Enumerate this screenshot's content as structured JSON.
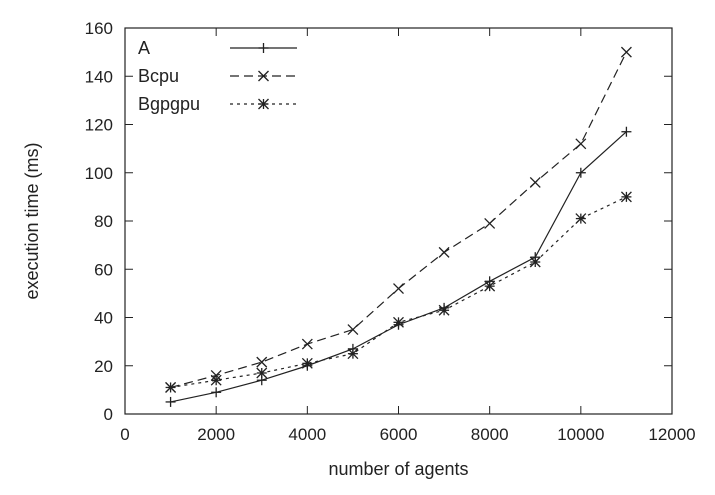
{
  "chart_data": {
    "type": "line",
    "title": "",
    "xlabel": "number of agents",
    "ylabel": "execution time (ms)",
    "xlim": [
      0,
      12000
    ],
    "ylim": [
      0,
      160
    ],
    "x_ticks": [
      0,
      2000,
      4000,
      6000,
      8000,
      10000,
      12000
    ],
    "y_ticks": [
      0,
      20,
      40,
      60,
      80,
      100,
      120,
      140,
      160
    ],
    "grid": false,
    "legend_position": "top-left",
    "x": [
      1000,
      2000,
      3000,
      4000,
      5000,
      6000,
      7000,
      8000,
      9000,
      10000,
      11000
    ],
    "series": [
      {
        "name": "A",
        "line_style": "solid",
        "marker": "plus",
        "values": [
          5,
          9,
          14,
          20,
          27,
          37,
          44,
          55,
          65,
          100,
          117
        ]
      },
      {
        "name": "Bcpu",
        "line_style": "dashed",
        "marker": "cross",
        "values": [
          11,
          16,
          21.5,
          29,
          35,
          52,
          67,
          79,
          96,
          112,
          150
        ]
      },
      {
        "name": "Bgpgpu",
        "line_style": "dotted",
        "marker": "star",
        "values": [
          11,
          14,
          17,
          21,
          25,
          38,
          43,
          53,
          63,
          81,
          90
        ]
      }
    ]
  }
}
